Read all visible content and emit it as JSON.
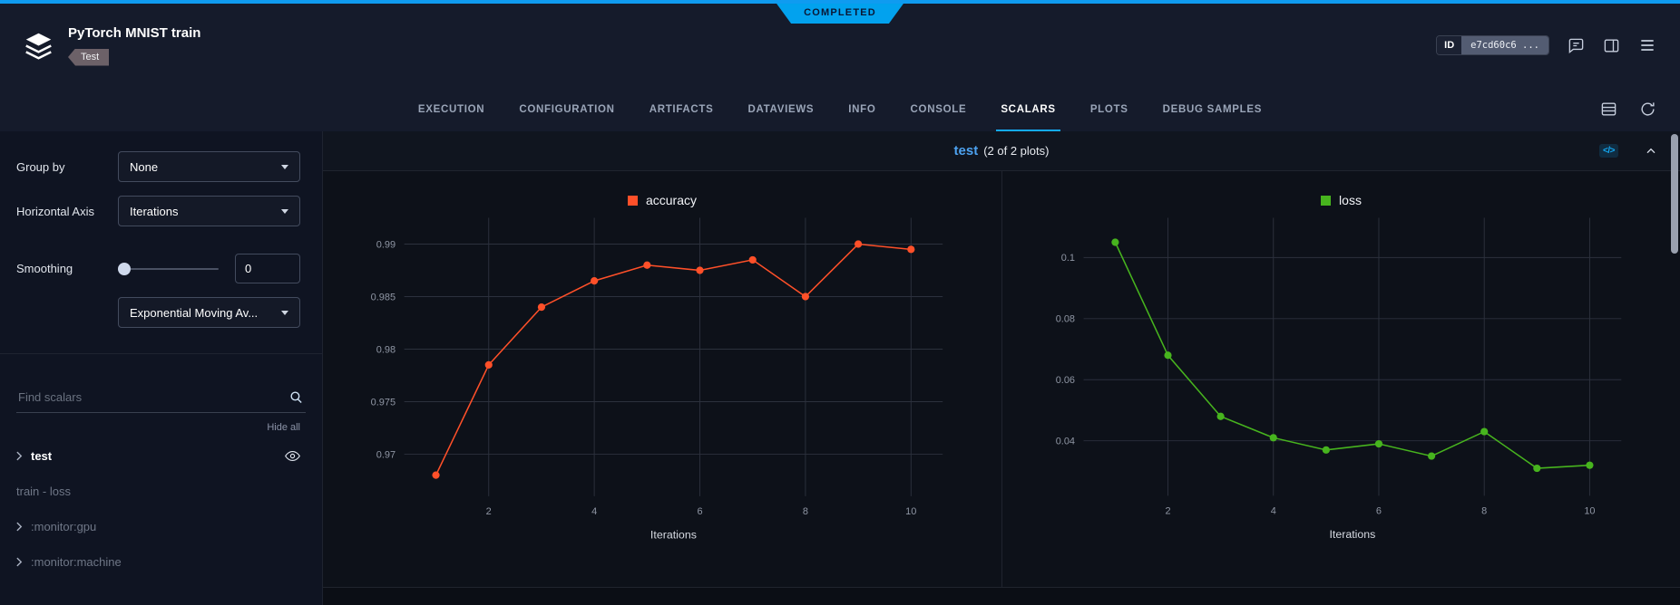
{
  "status_ribbon": "COMPLETED",
  "header": {
    "title": "PyTorch MNIST train",
    "tag": "Test",
    "id_label": "ID",
    "id_value": "e7cd60c6 ..."
  },
  "tabs": [
    "EXECUTION",
    "CONFIGURATION",
    "ARTIFACTS",
    "DATAVIEWS",
    "INFO",
    "CONSOLE",
    "SCALARS",
    "PLOTS",
    "DEBUG SAMPLES"
  ],
  "active_tab": "SCALARS",
  "sidebar": {
    "group_by_label": "Group by",
    "group_by_value": "None",
    "horizontal_axis_label": "Horizontal Axis",
    "horizontal_axis_value": "Iterations",
    "smoothing_label": "Smoothing",
    "smoothing_value": "0",
    "smoothing_type_value": "Exponential Moving Av...",
    "search_placeholder": "Find scalars",
    "hide_all_label": "Hide all",
    "metrics": [
      {
        "label": "test"
      },
      {
        "label": "train - loss"
      },
      {
        "label": ":monitor:gpu"
      },
      {
        "label": ":monitor:machine"
      }
    ]
  },
  "section": {
    "title": "test",
    "subtitle": "(2 of 2 plots)",
    "code_icon": "</>"
  },
  "chart_data": [
    {
      "type": "line",
      "title": "accuracy",
      "color": "#ff5029",
      "x": [
        1,
        2,
        3,
        4,
        5,
        6,
        7,
        8,
        9,
        10
      ],
      "y": [
        0.968,
        0.9785,
        0.984,
        0.9865,
        0.988,
        0.9875,
        0.9885,
        0.985,
        0.99,
        0.9895
      ],
      "xlabel": "Iterations",
      "xticks": [
        2,
        4,
        6,
        8,
        10
      ],
      "yticks": [
        0.97,
        0.975,
        0.98,
        0.985,
        0.99
      ],
      "xlim": [
        0.4,
        10.6
      ],
      "ylim": [
        0.966,
        0.9925
      ],
      "grid": true,
      "legend_position": "top-center"
    },
    {
      "type": "line",
      "title": "loss",
      "color": "#47b41e",
      "x": [
        1,
        2,
        3,
        4,
        5,
        6,
        7,
        8,
        9,
        10
      ],
      "y": [
        0.105,
        0.068,
        0.048,
        0.041,
        0.037,
        0.039,
        0.035,
        0.043,
        0.031,
        0.032
      ],
      "xlabel": "Iterations",
      "xticks": [
        2,
        4,
        6,
        8,
        10
      ],
      "yticks": [
        0.04,
        0.06,
        0.08,
        0.1
      ],
      "xlim": [
        0.4,
        10.6
      ],
      "ylim": [
        0.022,
        0.113
      ],
      "grid": true,
      "legend_position": "top-center"
    }
  ]
}
